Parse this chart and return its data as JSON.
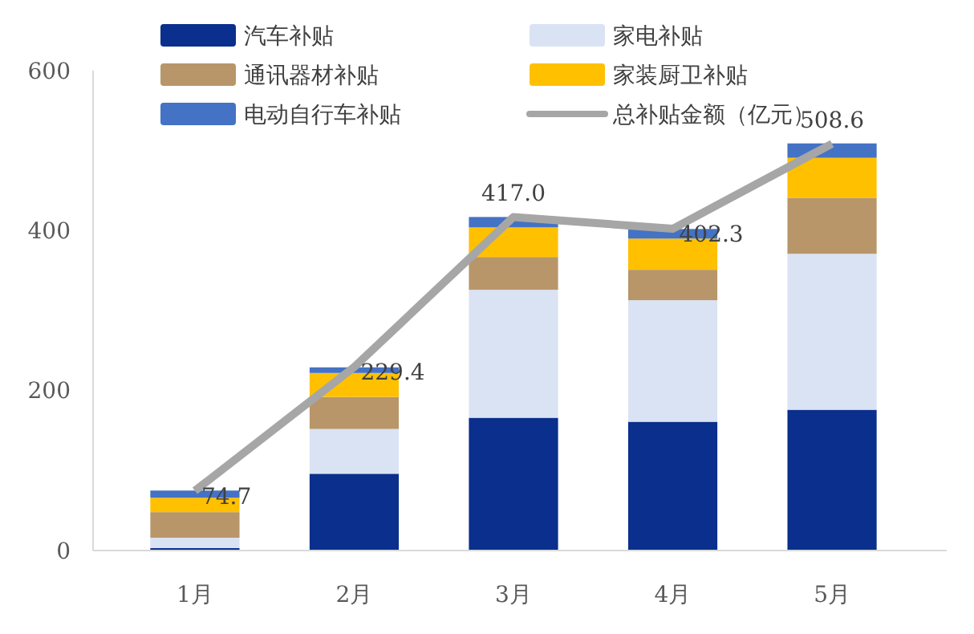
{
  "chart_data": {
    "type": "bar",
    "stacked": true,
    "categories": [
      "1月",
      "2月",
      "3月",
      "4月",
      "5月"
    ],
    "ylim": [
      0,
      600
    ],
    "yticks": [
      0,
      200,
      400,
      600
    ],
    "grid": false,
    "legend": "top",
    "series": [
      {
        "name": "汽车补贴",
        "color": "#0a2f8c",
        "values": [
          3,
          96,
          166,
          161,
          176
        ]
      },
      {
        "name": "家电补贴",
        "color": "#dae3f3",
        "values": [
          13,
          56,
          160,
          152,
          195
        ]
      },
      {
        "name": "通讯器材补贴",
        "color": "#b8966a",
        "values": [
          32,
          40,
          41,
          38,
          70
        ]
      },
      {
        "name": "家装厨卫补贴",
        "color": "#ffc000",
        "values": [
          18,
          30,
          37,
          39,
          50
        ]
      },
      {
        "name": "电动自行车补贴",
        "color": "#4472c4",
        "values": [
          9,
          7,
          13,
          12,
          18
        ]
      },
      {
        "name": "总补贴金额（亿元）",
        "type": "line",
        "color": "#a6a6a6",
        "values": [
          74.7,
          229.4,
          417.0,
          402.3,
          508.6
        ],
        "value_labels": [
          "74.7",
          "229.4",
          "417.0",
          "402.3",
          "508.6"
        ],
        "marker": "none"
      }
    ]
  }
}
